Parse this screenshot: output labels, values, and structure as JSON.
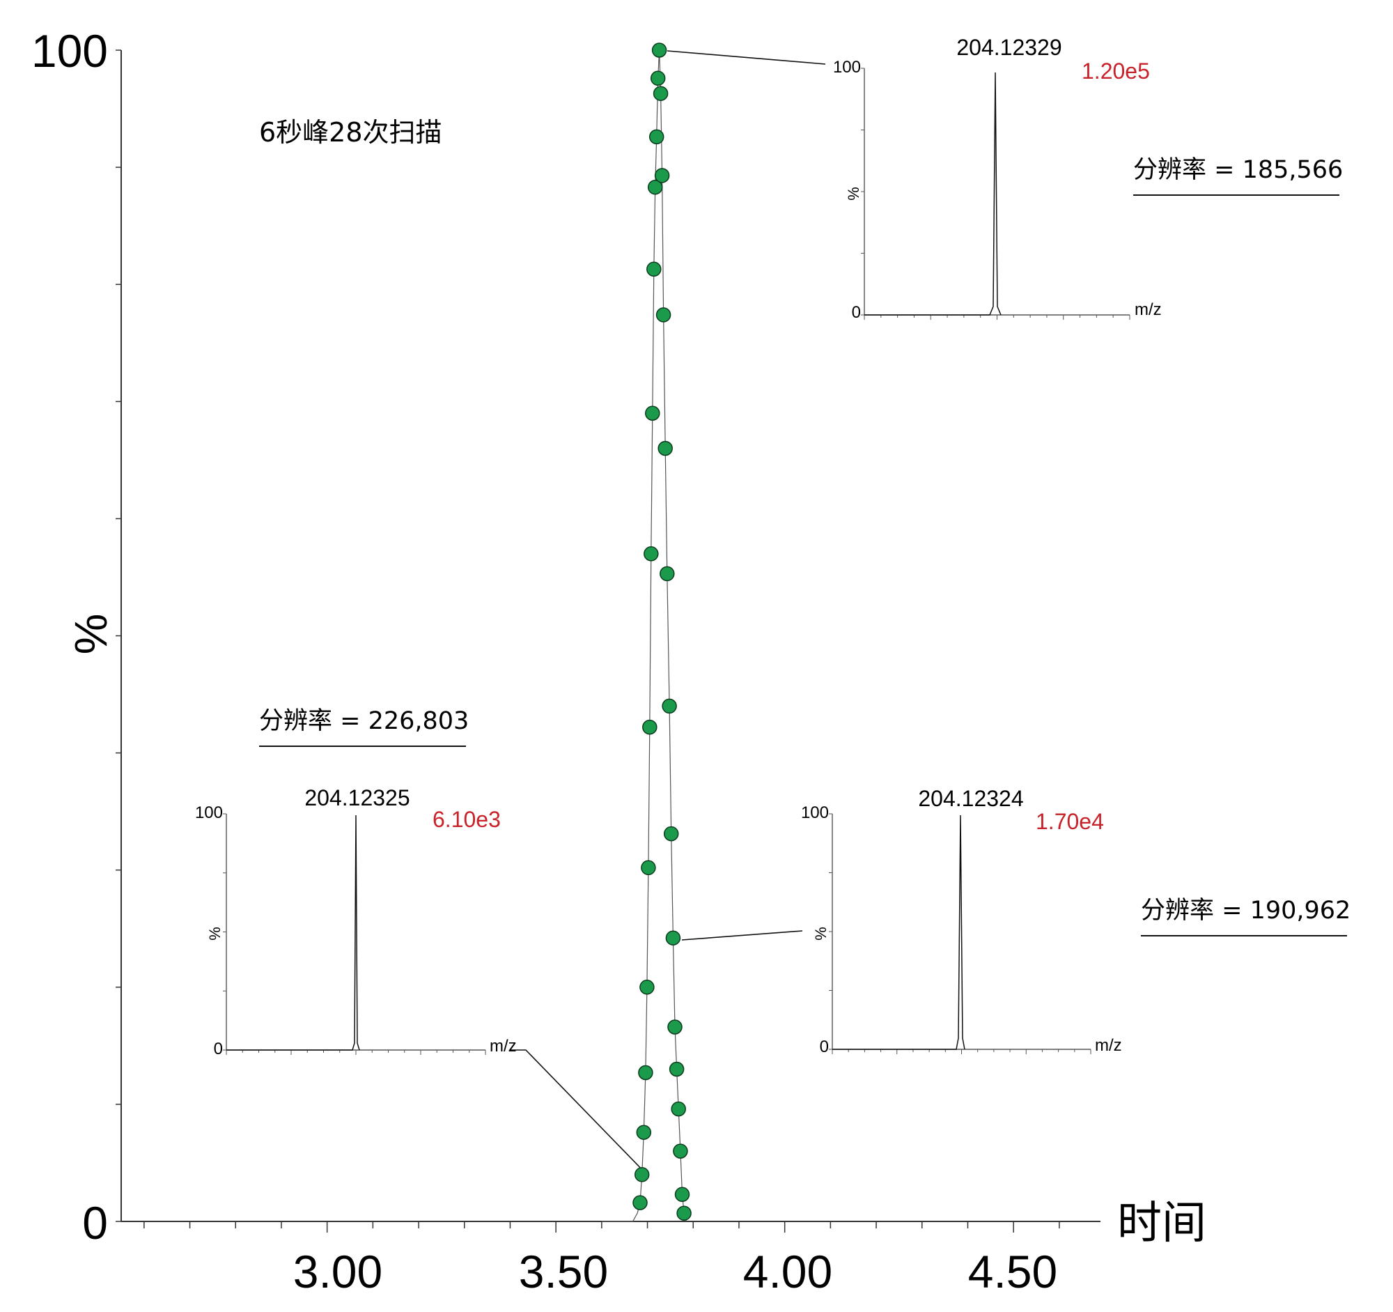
{
  "colors": {
    "points": "#1a9a4a",
    "intensity_label": "#c8222a",
    "axis": "#333333"
  },
  "chart_data": {
    "type": "scatter",
    "main": {
      "ylabel": "%",
      "xlabel": "时间",
      "y_ticks": [
        "100",
        "0"
      ],
      "x_ticks": [
        "3.00",
        "3.50",
        "4.00",
        "4.50"
      ],
      "xlim": [
        2.55,
        4.69
      ],
      "ylim": [
        0,
        100
      ],
      "annotation": "6秒峰28次扫描",
      "series": [
        {
          "x": [
            3.684,
            3.688,
            3.692,
            3.696,
            3.699,
            3.702,
            3.705,
            3.708,
            3.711,
            3.714,
            3.717,
            3.72,
            3.723,
            3.726,
            3.729,
            3.732,
            3.735,
            3.739,
            3.743,
            3.748,
            3.752,
            3.756,
            3.76,
            3.764,
            3.768,
            3.772,
            3.776,
            3.78
          ],
          "y": [
            1.6,
            4.0,
            7.6,
            12.7,
            20.0,
            30.2,
            42.2,
            57.0,
            69.0,
            81.3,
            88.3,
            92.6,
            97.6,
            100.0,
            96.3,
            89.3,
            77.4,
            66.0,
            55.3,
            44.0,
            33.1,
            24.2,
            16.6,
            13.0,
            9.6,
            6.0,
            2.3,
            0.7
          ]
        }
      ],
      "trace": {
        "x": [
          3.6,
          3.65,
          3.668,
          3.678,
          3.684,
          3.688,
          3.692,
          3.696,
          3.699,
          3.702,
          3.705,
          3.708,
          3.711,
          3.714,
          3.717,
          3.72,
          3.723,
          3.726,
          3.729,
          3.732,
          3.735,
          3.739,
          3.743,
          3.748,
          3.752,
          3.756,
          3.76,
          3.764,
          3.768,
          3.772,
          3.776,
          3.78,
          3.785
        ],
        "y": [
          0,
          0,
          0,
          0.7,
          1.6,
          4.0,
          7.6,
          12.7,
          20.0,
          30.2,
          42.2,
          57.0,
          69.0,
          81.3,
          88.3,
          92.6,
          97.6,
          100.0,
          96.3,
          89.3,
          77.4,
          66.0,
          55.3,
          44.0,
          33.1,
          24.2,
          16.6,
          13.0,
          9.6,
          6.0,
          2.3,
          0.7,
          0
        ]
      }
    },
    "insets": [
      {
        "y_ticks": [
          "100",
          "0"
        ],
        "ylabel": "%",
        "xlabel": "m/z",
        "peak_label": "204.12325",
        "intensity": "6.10e3",
        "resolution": "分辨率 = 226,803",
        "peak_position": 0.48
      },
      {
        "y_ticks": [
          "100",
          "0"
        ],
        "ylabel": "%",
        "xlabel": "m/z",
        "peak_label": "204.12324",
        "intensity": "1.70e4",
        "resolution": "分辨率 = 190,962",
        "peak_position": 0.49
      },
      {
        "y_ticks": [
          "100",
          "0"
        ],
        "ylabel": "%",
        "xlabel": "m/z",
        "peak_label": "204.12329",
        "intensity": "1.20e5",
        "resolution": "分辨率 = 185,566",
        "peak_position": 0.49
      }
    ]
  }
}
